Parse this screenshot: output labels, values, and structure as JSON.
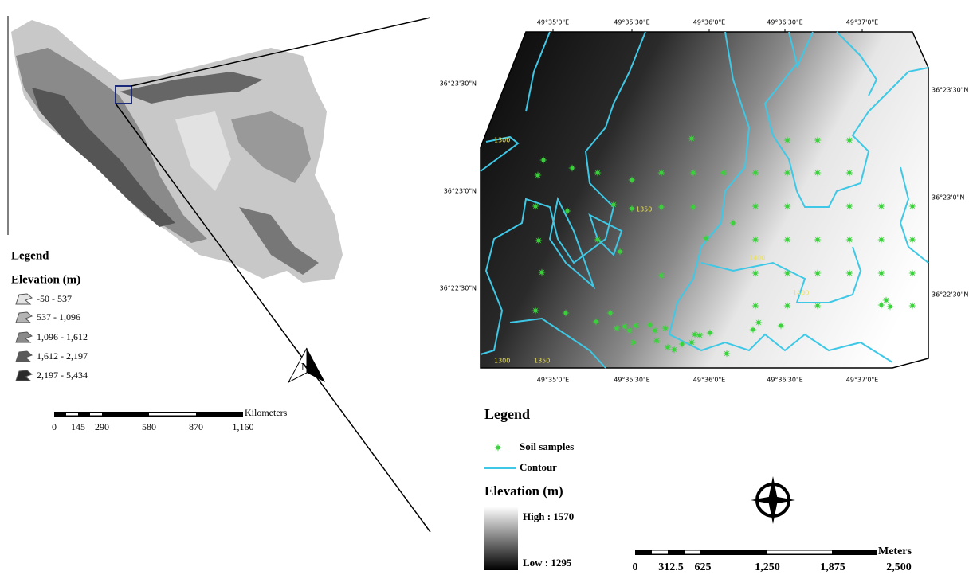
{
  "overview_map": {
    "legend_title": "Legend",
    "elevation_title": "Elevation (m)",
    "classes": [
      "-50 - 537",
      "537 - 1,096",
      "1,096 - 1,612",
      "1,612 - 2,197",
      "2,197 - 5,434"
    ],
    "north": "N",
    "scale_labels": [
      "0",
      "145",
      "290",
      "580",
      "870",
      "1,160"
    ],
    "scale_unit": "Kilometers"
  },
  "study_area_map": {
    "top_labels": [
      "49°35'0\"E",
      "49°35'30\"E",
      "49°36'0\"E",
      "49°36'30\"E",
      "49°37'0\"E"
    ],
    "bottom_labels": [
      "49°35'0\"E",
      "49°35'30\"E",
      "49°36'0\"E",
      "49°36'30\"E",
      "49°37'0\"E"
    ],
    "left_labels": [
      "36°23'30\"N",
      "36°23'0\"N",
      "36°22'30\"N"
    ],
    "right_labels": [
      "36°23'30\"N",
      "36°23'0\"N",
      "36°22'30\"N"
    ],
    "contour_labels": [
      "1300",
      "1350",
      "1400",
      "1400",
      "1300",
      "1350"
    ]
  },
  "legend": {
    "title": "Legend",
    "soil_samples": "Soil samples",
    "contour": "Contour",
    "elevation_title": "Elevation (m)",
    "high": "High : 1570",
    "low": "Low : 1295"
  },
  "scale": {
    "labels": [
      "0",
      "312.5",
      "625",
      "1,250",
      "1,875",
      "2,500"
    ],
    "unit": "Meters"
  }
}
